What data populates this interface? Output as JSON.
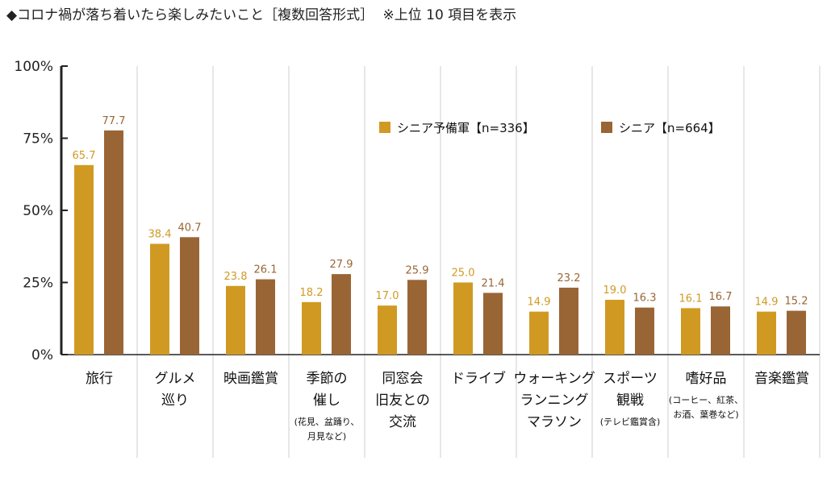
{
  "title": "◆コロナ禍が落ち着いたら楽しみたいこと［複数回答形式］",
  "subtitle": "※上位 10 項目を表示",
  "colors": {
    "series1": "#D09A22",
    "series2": "#9A6534",
    "grid": "#cfcfcf",
    "axis": "#222222"
  },
  "chart_data": {
    "type": "bar",
    "categories": [
      {
        "lines": [
          "旅行"
        ],
        "note": []
      },
      {
        "lines": [
          "グルメ",
          "巡り"
        ],
        "note": []
      },
      {
        "lines": [
          "映画鑑賞"
        ],
        "note": []
      },
      {
        "lines": [
          "季節の",
          "催し"
        ],
        "note": [
          "(花見、盆踊り、",
          "月見など)"
        ]
      },
      {
        "lines": [
          "同窓会",
          "旧友との",
          "交流"
        ],
        "note": []
      },
      {
        "lines": [
          "ドライブ"
        ],
        "note": []
      },
      {
        "lines": [
          "ウォーキング",
          "ランニング",
          "マラソン"
        ],
        "note": []
      },
      {
        "lines": [
          "スポーツ",
          "観戦"
        ],
        "note": [
          "(テレビ鑑賞含)"
        ]
      },
      {
        "lines": [
          "嗜好品"
        ],
        "note": [
          "(コーヒー、紅茶、",
          "お酒、葉巻など)"
        ]
      },
      {
        "lines": [
          "音楽鑑賞"
        ],
        "note": []
      }
    ],
    "series": [
      {
        "name": "シニア予備軍【n=336】",
        "values": [
          65.7,
          38.4,
          23.8,
          18.2,
          17.0,
          25.0,
          14.9,
          19.0,
          16.1,
          14.9
        ]
      },
      {
        "name": "シニア【n=664】",
        "values": [
          77.7,
          40.7,
          26.1,
          27.9,
          25.9,
          21.4,
          23.2,
          16.3,
          16.7,
          15.2
        ]
      }
    ],
    "y_ticks": [
      "0%",
      "25%",
      "50%",
      "75%",
      "100%"
    ],
    "ylim": [
      0,
      100
    ],
    "legend_position": "top-center",
    "grid": "vertical category separators"
  }
}
